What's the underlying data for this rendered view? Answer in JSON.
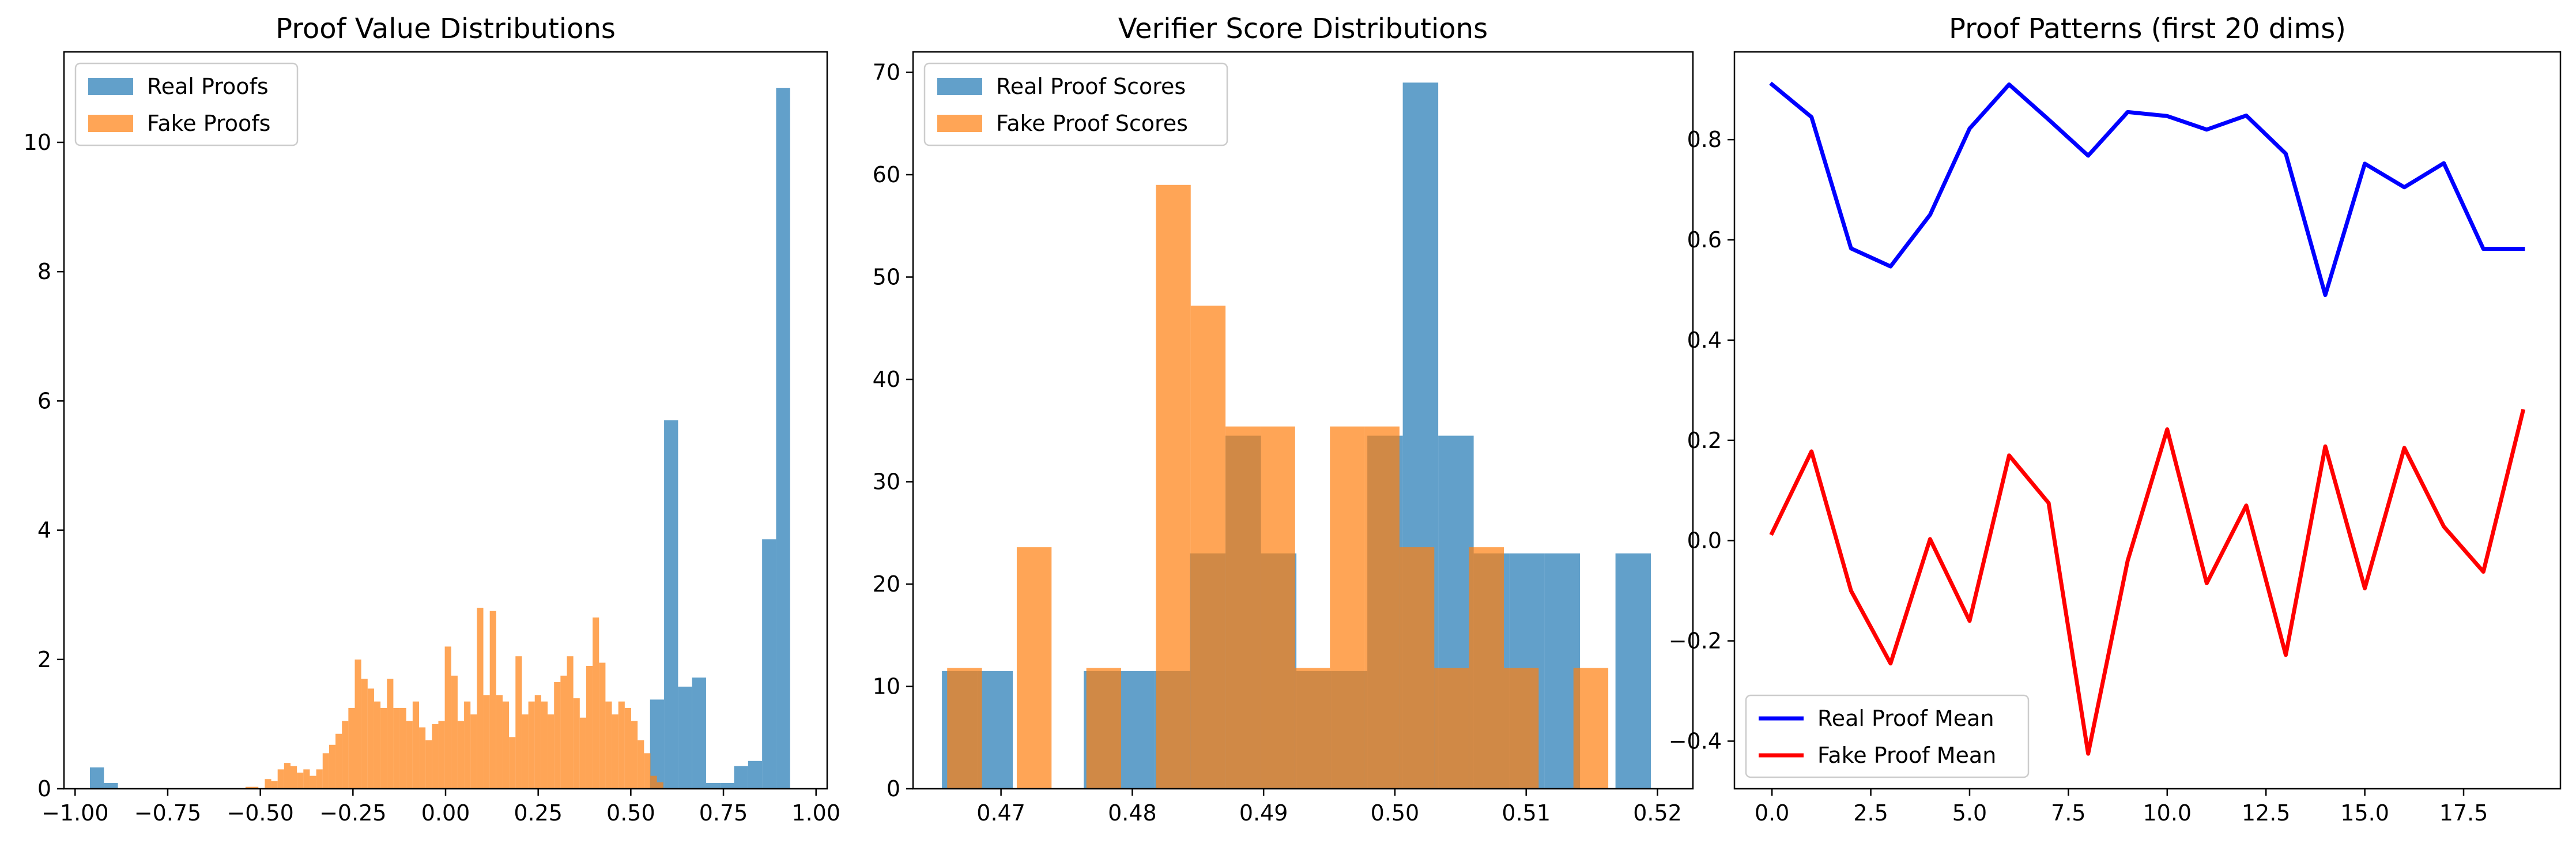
{
  "chart_data": [
    {
      "type": "bar",
      "title": "Proof Value Distributions",
      "xlabel": "",
      "ylabel": "",
      "xlim": [
        -1.03,
        1.03
      ],
      "ylim": [
        0,
        11.4
      ],
      "xticks": [
        -1.0,
        -0.75,
        -0.5,
        -0.25,
        0.0,
        0.25,
        0.5,
        0.75,
        1.0
      ],
      "xtick_labels": [
        "−1.00",
        "−0.75",
        "−0.50",
        "−0.25",
        "0.00",
        "0.25",
        "0.50",
        "0.75",
        "1.00"
      ],
      "yticks": [
        0,
        2,
        4,
        6,
        8,
        10
      ],
      "ytick_labels": [
        "0",
        "2",
        "4",
        "6",
        "8",
        "10"
      ],
      "legend_position": "top-left",
      "series": [
        {
          "name": "Real Proofs",
          "color": "#1f77b4",
          "alpha": 0.7,
          "bin_start": -0.96,
          "bin_width": 0.0378,
          "values": [
            0.33,
            0.09,
            0,
            0,
            0,
            0,
            0,
            0,
            0,
            0,
            0,
            0,
            0,
            0,
            0,
            0,
            0,
            0,
            0,
            0,
            0,
            0,
            0,
            0,
            0,
            0,
            0,
            0,
            0,
            0,
            0,
            0,
            0,
            0,
            0,
            0,
            0,
            0,
            0,
            0,
            1.38,
            5.7,
            1.58,
            1.72,
            0.09,
            0.09,
            0.35,
            0.43,
            3.86,
            10.84
          ]
        },
        {
          "name": "Fake Proofs",
          "color": "#ff7f0e",
          "alpha": 0.7,
          "bin_start": -0.54,
          "bin_width": 0.01735,
          "values": [
            0.03,
            0.03,
            0.0,
            0.15,
            0.12,
            0.3,
            0.4,
            0.35,
            0.25,
            0.3,
            0.2,
            0.3,
            0.55,
            0.68,
            0.85,
            1.05,
            1.25,
            2.0,
            1.7,
            1.55,
            1.35,
            1.25,
            1.7,
            1.25,
            1.25,
            1.05,
            1.35,
            0.95,
            0.75,
            1.0,
            1.05,
            2.2,
            1.75,
            1.05,
            1.35,
            1.15,
            2.8,
            1.45,
            2.75,
            1.45,
            1.35,
            0.8,
            2.05,
            1.15,
            1.35,
            1.45,
            1.35,
            1.15,
            1.65,
            1.75,
            2.05,
            1.4,
            1.1,
            1.9,
            2.65,
            1.95,
            1.35,
            1.15,
            1.35,
            1.25,
            1.05,
            0.75,
            0.55,
            0.2,
            0.1
          ]
        }
      ]
    },
    {
      "type": "bar",
      "title": "Verifier Score Distributions",
      "xlabel": "",
      "ylabel": "",
      "xlim": [
        0.4633,
        0.5227
      ],
      "ylim": [
        0,
        72
      ],
      "xticks": [
        0.47,
        0.48,
        0.49,
        0.5,
        0.51,
        0.52
      ],
      "xtick_labels": [
        "0.47",
        "0.48",
        "0.49",
        "0.50",
        "0.51",
        "0.52"
      ],
      "yticks": [
        0,
        10,
        20,
        30,
        40,
        50,
        60,
        70
      ],
      "ytick_labels": [
        "0",
        "10",
        "20",
        "30",
        "40",
        "50",
        "60",
        "70"
      ],
      "legend_position": "top-left",
      "series": [
        {
          "name": "Real Proof Scores",
          "color": "#1f77b4",
          "alpha": 0.7,
          "bin_start": 0.4655,
          "bin_width": 0.0027,
          "values": [
            11.5,
            11.5,
            0,
            0,
            11.5,
            11.5,
            11.5,
            23,
            34.5,
            23,
            11.5,
            11.5,
            34.5,
            69,
            34.5,
            23,
            23,
            23,
            0,
            23
          ]
        },
        {
          "name": "Fake Proof Scores",
          "color": "#ff7f0e",
          "alpha": 0.7,
          "bin_start": 0.4659,
          "bin_width": 0.00265,
          "values": [
            11.8,
            0,
            23.6,
            0,
            11.8,
            0,
            59,
            47.2,
            35.4,
            35.4,
            11.8,
            35.4,
            35.4,
            23.6,
            11.8,
            23.6,
            11.8,
            0,
            11.8,
            0
          ]
        }
      ]
    },
    {
      "type": "line",
      "title": "Proof Patterns (first 20 dims)",
      "xlabel": "",
      "ylabel": "",
      "xlim": [
        -0.95,
        19.95
      ],
      "ylim": [
        -0.495,
        0.975
      ],
      "xticks": [
        0,
        2.5,
        5,
        7.5,
        10,
        12.5,
        15,
        17.5
      ],
      "xtick_labels": [
        "0.0",
        "2.5",
        "5.0",
        "7.5",
        "10.0",
        "12.5",
        "15.0",
        "17.5"
      ],
      "yticks": [
        -0.4,
        -0.2,
        0.0,
        0.2,
        0.4,
        0.6,
        0.8
      ],
      "ytick_labels": [
        "−0.4",
        "−0.2",
        "0.0",
        "0.2",
        "0.4",
        "0.6",
        "0.8"
      ],
      "legend_position": "bottom-left",
      "x": [
        0,
        1,
        2,
        3,
        4,
        5,
        6,
        7,
        8,
        9,
        10,
        11,
        12,
        13,
        14,
        15,
        16,
        17,
        18,
        19
      ],
      "series": [
        {
          "name": "Real Proof Mean",
          "color": "#0000ff",
          "values": [
            0.91,
            0.845,
            0.583,
            0.547,
            0.65,
            0.822,
            0.91,
            0.84,
            0.768,
            0.855,
            0.847,
            0.82,
            0.848,
            0.772,
            0.49,
            0.752,
            0.705,
            0.753,
            0.582,
            0.582
          ]
        },
        {
          "name": "Fake Proof Mean",
          "color": "#ff0000",
          "values": [
            0.015,
            0.178,
            -0.1,
            -0.245,
            0.003,
            -0.16,
            0.17,
            0.075,
            -0.425,
            -0.04,
            0.222,
            -0.085,
            0.07,
            -0.228,
            0.188,
            -0.095,
            0.185,
            0.028,
            -0.062,
            0.258
          ]
        }
      ]
    }
  ]
}
